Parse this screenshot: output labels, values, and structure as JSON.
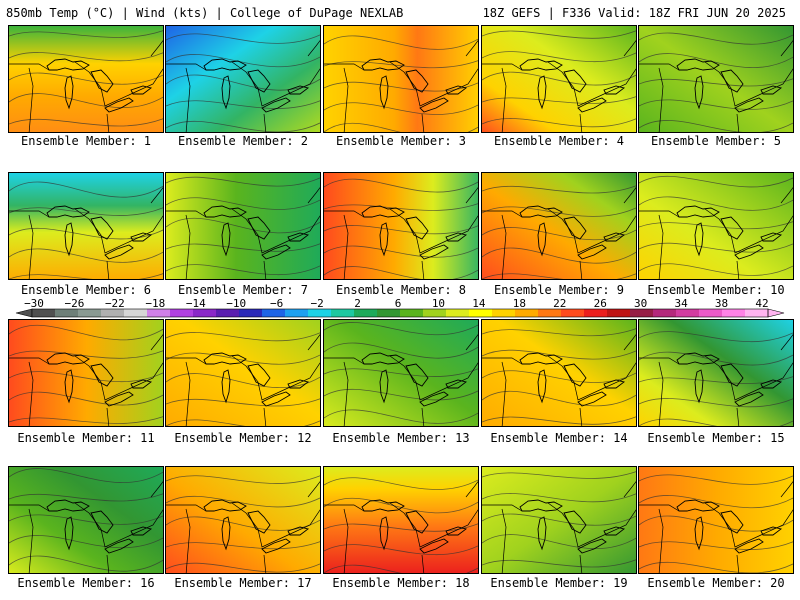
{
  "header": {
    "left": "850mb Temp (°C) | Wind (kts) | College of DuPage NEXLAB",
    "right": "18Z GEFS | F336 Valid: 18Z FRI JUN 20 2025"
  },
  "members": [
    {
      "label": "Ensemble Member: 1"
    },
    {
      "label": "Ensemble Member: 2"
    },
    {
      "label": "Ensemble Member: 3"
    },
    {
      "label": "Ensemble Member: 4"
    },
    {
      "label": "Ensemble Member: 5"
    },
    {
      "label": "Ensemble Member: 6"
    },
    {
      "label": "Ensemble Member: 7"
    },
    {
      "label": "Ensemble Member: 8"
    },
    {
      "label": "Ensemble Member: 9"
    },
    {
      "label": "Ensemble Member: 10"
    },
    {
      "label": "Ensemble Member: 11"
    },
    {
      "label": "Ensemble Member: 12"
    },
    {
      "label": "Ensemble Member: 13"
    },
    {
      "label": "Ensemble Member: 14"
    },
    {
      "label": "Ensemble Member: 15"
    },
    {
      "label": "Ensemble Member: 16"
    },
    {
      "label": "Ensemble Member: 17"
    },
    {
      "label": "Ensemble Member: 18"
    },
    {
      "label": "Ensemble Member: 19"
    },
    {
      "label": "Ensemble Member: 20"
    }
  ],
  "colorbar": {
    "ticks": [
      "−30",
      "−26",
      "−22",
      "−18",
      "−14",
      "−10",
      "−6",
      "−2",
      "2",
      "6",
      "10",
      "14",
      "18",
      "22",
      "26",
      "30",
      "34",
      "38",
      "42"
    ],
    "colors": [
      "#505050",
      "#6e7f78",
      "#8a9a92",
      "#b0b0b0",
      "#d6d6d6",
      "#d080e8",
      "#b040e0",
      "#8a28c8",
      "#5a1eb0",
      "#2a28b8",
      "#1e64e6",
      "#1ea0f0",
      "#1ed2e6",
      "#1ec8a0",
      "#1eaa5a",
      "#329632",
      "#5ab41e",
      "#a0d21e",
      "#dcec1e",
      "#ffff00",
      "#ffd200",
      "#ffaa00",
      "#ff7814",
      "#ff4b1e",
      "#eb1e1e",
      "#be1414",
      "#961e46",
      "#b4287c",
      "#d23ca0",
      "#eb5ac8",
      "#ff82e6",
      "#ffb4f0"
    ]
  }
}
